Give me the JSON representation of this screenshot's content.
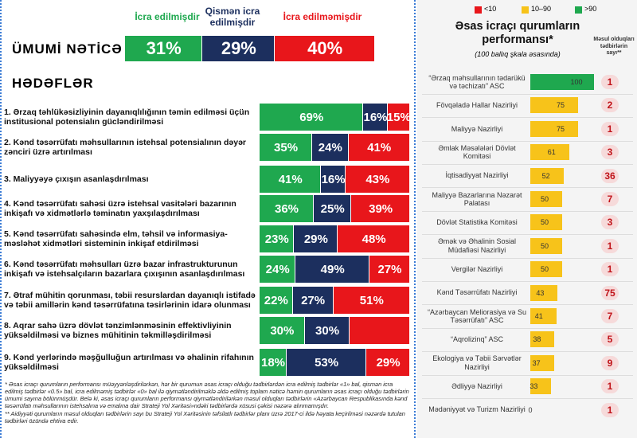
{
  "header": {
    "columns": [
      {
        "label": "İcra edilmişdir",
        "color": "#1fa84f"
      },
      {
        "label": "Qismən icra edilmişdir",
        "color": "#1c2f5e"
      },
      {
        "label": "İcra edilməmişdir",
        "color": "#e8161b"
      }
    ]
  },
  "overall": {
    "label": "ÜMUMİ NƏTİCƏ",
    "values": [
      31,
      29,
      40
    ],
    "value_labels": [
      "31%",
      "29%",
      "40%"
    ]
  },
  "goals": {
    "title": "HƏDƏFLƏR",
    "items": [
      {
        "text": "1. Ərzaq təhlükəsizliyinin dayanıqlılığının təmin edilməsi üçün institusional potensialın gücləndirilməsi",
        "values": [
          69,
          16,
          15
        ],
        "value_labels": [
          "69%",
          "16%",
          "15%"
        ]
      },
      {
        "text": "2. Kənd təsərrüfatı məhsullarının istehsal potensialının dəyər zənciri üzrə artırılması",
        "values": [
          35,
          24,
          41
        ],
        "value_labels": [
          "35%",
          "24%",
          "41%"
        ]
      },
      {
        "text": "3. Maliyyəyə çıxışın asanlaşdırılması",
        "values": [
          41,
          16,
          43
        ],
        "value_labels": [
          "41%",
          "16%",
          "43%"
        ]
      },
      {
        "text": "4. Kənd təsərrüfatı sahəsi üzrə istehsal vasitələri bazarının inkişafı və xidmətlərlə təminatın yaxşılaşdırılması",
        "values": [
          36,
          25,
          39
        ],
        "value_labels": [
          "36%",
          "25%",
          "39%"
        ]
      },
      {
        "text": "5. Kənd təsərrüfatı sahəsində elm, təhsil və informasiya-məsləhət xidmətləri sisteminin inkişaf etdirilməsi",
        "values": [
          23,
          29,
          48
        ],
        "value_labels": [
          "23%",
          "29%",
          "48%"
        ]
      },
      {
        "text": "6. Kənd təsərrüfatı məhsulları üzrə bazar infrastrukturunun inkişafı və istehsalçıların bazarlara çıxışının asanlaşdırılması",
        "values": [
          24,
          49,
          27
        ],
        "value_labels": [
          "24%",
          "49%",
          "27%"
        ]
      },
      {
        "text": "7. Ətraf mühitin qorunması, təbii resurslardan dayanıqlı istifadə və təbii amillərin kənd təsərrüfatına təsirlərinin idarə olunması",
        "values": [
          22,
          27,
          51
        ],
        "value_labels": [
          "22%",
          "27%",
          "51%"
        ]
      },
      {
        "text": "8. Aqrar sahə üzrə dövlət tənzimlənməsinin effektivliyinin yüksəldilməsi və biznes mühitinin təkmilləşdirilməsi",
        "values": [
          30,
          30,
          40
        ],
        "value_labels": [
          "30%",
          "30%",
          null
        ]
      },
      {
        "text": "9. Kənd yerlərində məşğulluğun artırılması və əhalinin rifahının yüksəldilməsi",
        "values": [
          18,
          53,
          29
        ],
        "value_labels": [
          "18%",
          "53%",
          "29%"
        ]
      }
    ]
  },
  "performance": {
    "title": "Əsas icraçı qurumların performansı*",
    "subtitle": "(100 ballıq şkala əsasında)",
    "count_header": "Məsul olduqları tədbirlərin sayı**",
    "max": 100,
    "legend": [
      {
        "label": "<10",
        "color": "#e8161b"
      },
      {
        "label": "10–90",
        "color": "#f7c31a"
      },
      {
        "label": ">90",
        "color": "#1fa84f"
      }
    ],
    "items": [
      {
        "name": "“Ərzaq məhsullarının tədarükü və təchizatı” ASC",
        "score": 100,
        "count": 1,
        "color": "#1fa84f"
      },
      {
        "name": "Fövqəladə Hallar Nazirliyi",
        "score": 75,
        "count": 2,
        "color": "#f7c31a"
      },
      {
        "name": "Maliyyə Nazirliyi",
        "score": 75,
        "count": 1,
        "color": "#f7c31a"
      },
      {
        "name": "Əmlak Məsələləri Dövlət Komitəsi",
        "score": 61,
        "count": 3,
        "color": "#f7c31a"
      },
      {
        "name": "İqtisadiyyat Nazirliyi",
        "score": 52,
        "count": 36,
        "color": "#f7c31a"
      },
      {
        "name": "Maliyyə Bazarlarına Nəzarət Palatası",
        "score": 50,
        "count": 7,
        "color": "#f7c31a"
      },
      {
        "name": "Dövlət Statistika Komitəsi",
        "score": 50,
        "count": 3,
        "color": "#f7c31a"
      },
      {
        "name": "Əmək və Əhalinin Sosial Müdafiəsi Nazirliyi",
        "score": 50,
        "count": 1,
        "color": "#f7c31a"
      },
      {
        "name": "Vergilər Nazirliyi",
        "score": 50,
        "count": 1,
        "color": "#f7c31a"
      },
      {
        "name": "Kənd Təsərrüfatı Nazirliyi",
        "score": 43,
        "count": 75,
        "color": "#f7c31a"
      },
      {
        "name": "“Azərbaycan Meliorasiya və Su Təsərrüfatı” ASC",
        "score": 41,
        "count": 7,
        "color": "#f7c31a"
      },
      {
        "name": "“Aqrolizinq” ASC",
        "score": 38,
        "count": 5,
        "color": "#f7c31a"
      },
      {
        "name": "Ekologiya və Təbii Sərvətlər Nazirliyi",
        "score": 37,
        "count": 9,
        "color": "#f7c31a"
      },
      {
        "name": "Ədliyyə Nazirliyi",
        "score": 33,
        "count": 1,
        "color": "#f7c31a"
      },
      {
        "name": "Mədəniyyət və Turizm Nazirliyi",
        "score": 0,
        "count": 1,
        "color": "#e8161b"
      }
    ]
  },
  "footnotes": [
    "* Əsas icraçı qurumların performansı müəyyənləşdirilərkən, hər bir qurumun əsas icraçı olduğu tədbirlərdən icra edilmiş tədbirlər «1» bal, qismən icra edilmiş tədbirlər «0.5» bal, icra edilməmiş tədbirlər «0» bal ilə qiymətləndirilməklə əldə edilmiş toplam nəticə həmin qurumların əsas icraçı olduğu tədbirlərin ümumi sayına bölünmüşdür. Belə ki, əsas icraçı qurumların performansı qiymətləndirilərkən məsul olduqları tədbirlərin «Azərbaycan Respublikasında kənd təsərrüfatı məhsullarının istehsalına və emalına dair Strateji Yol Xəritəsi»ndəki tədbirlərdə xüsusi çəkisi nəzərə alınmamışdır.",
    "** Aidiyyəti qurumların məsul olduqları tədbirlərin sayı bu Strateji Yol Xəritəsinin təfsilatlı tədbirlər planı üzrə 2017-ci ildə həyata keçirilməsi nəzərdə tutulan tədbirləri özündə ehtiva edir."
  ]
}
